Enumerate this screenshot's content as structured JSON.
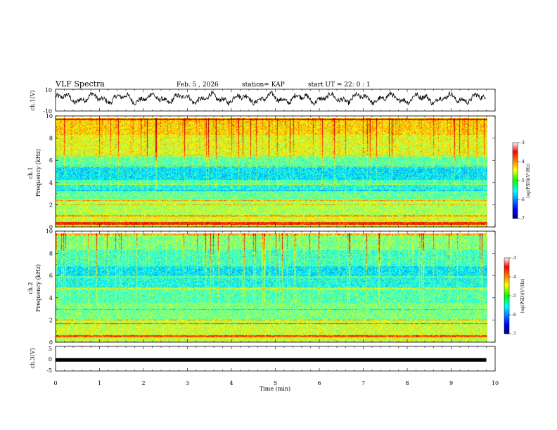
{
  "header": {
    "title": "VLF Spectra",
    "date": "Feb. 5  , 2026",
    "station": "station= KAP",
    "start": "start  UT  =   22: 0   : 1"
  },
  "chart_data": {
    "type": "heatmap",
    "title": "VLF Spectra",
    "xlabel": "Time  (min)",
    "xlim": [
      0,
      10
    ],
    "xticks": [
      "0",
      "1",
      "2",
      "3",
      "4",
      "5",
      "6",
      "7",
      "8",
      "9",
      "10"
    ],
    "data_end_min": 9.8,
    "panels": [
      {
        "id": "ch1-waveform",
        "type": "line",
        "ylabel": "ch.1(V)",
        "ylim": [
          -10,
          10
        ],
        "yticks": [
          "10",
          "-10"
        ],
        "description_values": "noisy waveform oscillating between about -6 and 8 V"
      },
      {
        "id": "ch1-spectrogram",
        "type": "heatmap",
        "ylabel_line1": "ch.1",
        "ylabel_line2": "Frequency  (kHz)",
        "ylim": [
          0,
          10
        ],
        "yticks": [
          "0",
          "2",
          "4",
          "6",
          "8",
          "10"
        ],
        "colorbar": {
          "label": "log(PSD)(V²/Hz)",
          "range": [
            -7,
            -3
          ],
          "ticks": [
            "-3",
            "-4",
            "-5",
            "-6",
            "-7"
          ]
        }
      },
      {
        "id": "ch2-spectrogram",
        "type": "heatmap",
        "ylabel_line1": "ch.2",
        "ylabel_line2": "Frequency  (kHz)",
        "ylim": [
          0,
          10
        ],
        "yticks": [
          "0",
          "2",
          "4",
          "6",
          "8",
          "10"
        ],
        "colorbar": {
          "label": "log(PSD)(V²/Hz)",
          "range": [
            -7,
            -3
          ],
          "ticks": [
            "-3",
            "-4",
            "-5",
            "-6",
            "-7"
          ]
        }
      },
      {
        "id": "ch3-voltage",
        "type": "line",
        "ylabel": "ch.3(V)",
        "ylim": [
          -5,
          5
        ],
        "yticks": [
          "5",
          "0",
          "-5"
        ],
        "level_V": -0.5
      }
    ]
  }
}
